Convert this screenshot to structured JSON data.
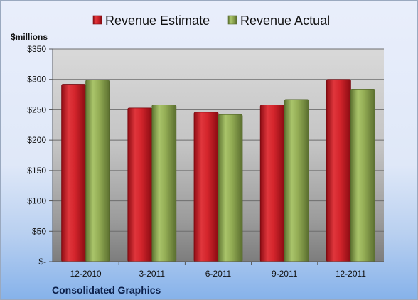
{
  "chart_data": {
    "type": "bar",
    "unit_label": "$millions",
    "footer": "Consolidated Graphics",
    "categories": [
      "12-2010",
      "3-2011",
      "6-2011",
      "9-2011",
      "12-2011"
    ],
    "series": [
      {
        "name": "Revenue Estimate",
        "color": "#c8202a",
        "values": [
          292,
          253,
          246,
          258,
          300
        ]
      },
      {
        "name": "Revenue Actual",
        "color": "#8fa84f",
        "values": [
          299,
          258,
          242,
          267,
          284
        ]
      }
    ],
    "ylim": [
      0,
      350
    ],
    "yticks": [
      0,
      50,
      100,
      150,
      200,
      250,
      300,
      350
    ],
    "ytick_labels": [
      "$-",
      "$50",
      "$100",
      "$150",
      "$200",
      "$250",
      "$300",
      "$350"
    ],
    "grid": true,
    "legend_position": "top"
  }
}
